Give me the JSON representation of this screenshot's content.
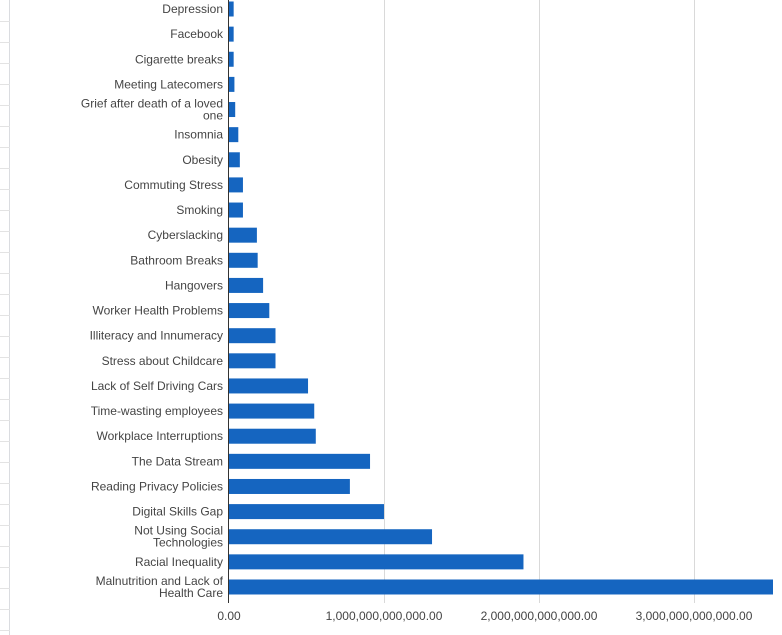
{
  "chart_data": {
    "type": "bar",
    "orientation": "horizontal",
    "categories": [
      "Depression",
      "Facebook",
      "Cigarette breaks",
      "Meeting Latecomers",
      "Grief after death of a loved one",
      "Insomnia",
      "Obesity",
      "Commuting Stress",
      "Smoking",
      "Cyberslacking",
      "Bathroom Breaks",
      "Hangovers",
      "Worker Health Problems",
      "Illiteracy and Innumeracy",
      "Stress about Childcare",
      "Lack of Self Driving Cars",
      "Time-wasting employees",
      "Workplace Interruptions",
      "The Data Stream",
      "Reading Privacy Policies",
      "Digital Skills Gap",
      "Not Using Social Technologies",
      "Racial Inequality",
      "Malnutrition and Lack of Health Care"
    ],
    "category_lines": [
      [
        "Depression"
      ],
      [
        "Facebook"
      ],
      [
        "Cigarette breaks"
      ],
      [
        "Meeting Latecomers"
      ],
      [
        "Grief after death of a loved",
        "one"
      ],
      [
        "Insomnia"
      ],
      [
        "Obesity"
      ],
      [
        "Commuting Stress"
      ],
      [
        "Smoking"
      ],
      [
        "Cyberslacking"
      ],
      [
        "Bathroom Breaks"
      ],
      [
        "Hangovers"
      ],
      [
        "Worker Health Problems"
      ],
      [
        "Illiteracy and Innumeracy"
      ],
      [
        "Stress about Childcare"
      ],
      [
        "Lack of Self Driving Cars"
      ],
      [
        "Time-wasting employees"
      ],
      [
        "Workplace Interruptions"
      ],
      [
        "The Data Stream"
      ],
      [
        "Reading Privacy Policies"
      ],
      [
        "Digital Skills Gap"
      ],
      [
        "Not Using Social",
        "Technologies"
      ],
      [
        "Racial Inequality"
      ],
      [
        "Malnutrition and Lack of",
        "Health Care"
      ]
    ],
    "values": [
      30000000000,
      30000000000,
      30000000000,
      35000000000,
      40000000000,
      60000000000,
      70000000000,
      90000000000,
      90000000000,
      180000000000,
      185000000000,
      220000000000,
      260000000000,
      300000000000,
      300000000000,
      510000000000,
      550000000000,
      560000000000,
      910000000000,
      780000000000,
      1000000000000,
      1310000000000,
      1900000000000,
      3510000000000
    ],
    "x_ticks": [
      0,
      1000000000000,
      2000000000000,
      3000000000000
    ],
    "x_tick_labels": [
      "0.00",
      "1,000,000,000,000.00",
      "2,000,000,000,000.00",
      "3,000,000,000,000.00"
    ],
    "xlim": [
      0,
      3510000000000
    ],
    "title": "",
    "xlabel": "",
    "ylabel": "",
    "grid": "vertical",
    "bar_color": "#1565c0",
    "grid_color": "#d9d9d9",
    "axis_color": "#333333",
    "label_color": "#444444"
  }
}
